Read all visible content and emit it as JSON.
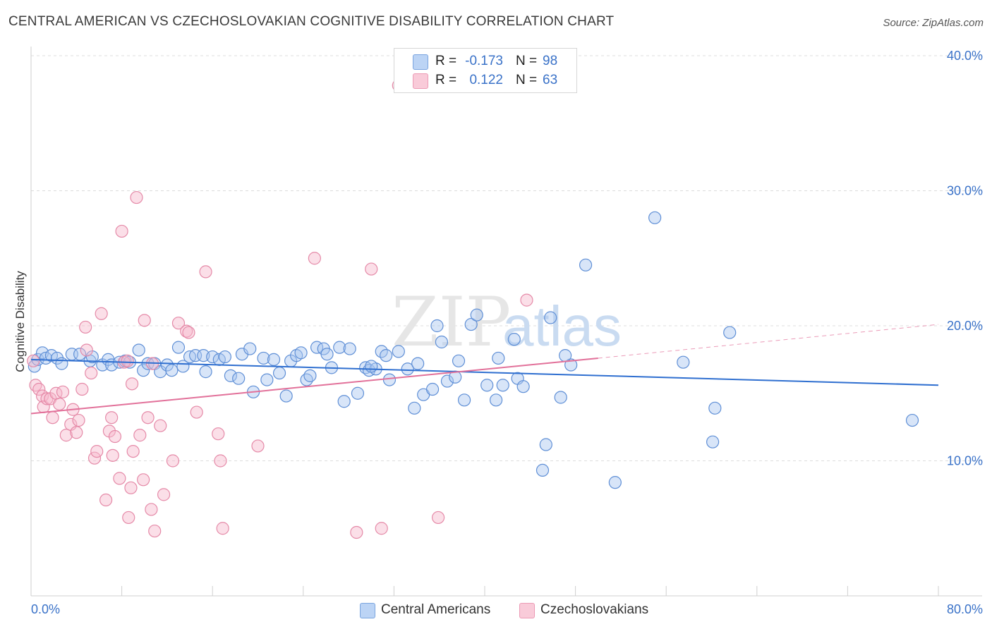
{
  "header": {
    "title": "CENTRAL AMERICAN VS CZECHOSLOVAKIAN COGNITIVE DISABILITY CORRELATION CHART",
    "source": "Source: ZipAtlas.com"
  },
  "watermark": {
    "zip": "ZIP",
    "atlas": "atlas"
  },
  "legend_top": {
    "rows": [
      {
        "r_label": "R =",
        "r_value": "-0.173",
        "n_label": "N =",
        "n_value": "98",
        "color": "#a8c6f0"
      },
      {
        "r_label": "R =",
        "r_value": "0.122",
        "n_label": "N =",
        "n_value": "63",
        "color": "#f6b8cb"
      }
    ]
  },
  "legend_bottom": {
    "items": [
      {
        "label": "Central Americans",
        "color": "#a8c6f0"
      },
      {
        "label": "Czechoslovakians",
        "color": "#f6b8cb"
      }
    ]
  },
  "chart_data": {
    "type": "scatter",
    "title": "CENTRAL AMERICAN VS CZECHOSLOVAKIAN COGNITIVE DISABILITY CORRELATION CHART",
    "xlabel": "",
    "ylabel": "Cognitive Disability",
    "xlim": [
      0,
      80
    ],
    "ylim": [
      0,
      40
    ],
    "x_tick_labels": [
      "0.0%",
      "80.0%"
    ],
    "y_ticks": [
      10,
      20,
      30,
      40
    ],
    "y_tick_labels": [
      "10.0%",
      "20.0%",
      "30.0%",
      "40.0%"
    ],
    "grid": "horizontal dashed",
    "legend_position": "top-center",
    "colors": {
      "blue_fill": "#a8c6f0",
      "blue_stroke": "#5f8fd6",
      "blue_line": "#2f6fd0",
      "pink_fill": "#f6b8cb",
      "pink_stroke": "#e58aa8",
      "pink_line": "#e2719a"
    },
    "series": [
      {
        "name": "Central Americans",
        "r": -0.173,
        "n": 98,
        "trend": {
          "x": [
            0,
            80
          ],
          "y": [
            17.5,
            15.6
          ]
        },
        "points": [
          [
            0.3,
            17.0
          ],
          [
            0.6,
            17.5
          ],
          [
            1.0,
            18.0
          ],
          [
            1.3,
            17.6
          ],
          [
            1.8,
            17.8
          ],
          [
            2.3,
            17.6
          ],
          [
            2.7,
            17.2
          ],
          [
            3.6,
            17.9
          ],
          [
            4.3,
            17.9
          ],
          [
            5.2,
            17.4
          ],
          [
            5.4,
            17.7
          ],
          [
            6.3,
            17.1
          ],
          [
            6.8,
            17.5
          ],
          [
            7.1,
            17.1
          ],
          [
            7.8,
            17.3
          ],
          [
            8.3,
            17.4
          ],
          [
            8.7,
            17.3
          ],
          [
            9.5,
            18.2
          ],
          [
            9.9,
            16.7
          ],
          [
            10.3,
            17.2
          ],
          [
            10.9,
            17.2
          ],
          [
            11.4,
            16.6
          ],
          [
            12.0,
            17.1
          ],
          [
            12.4,
            16.7
          ],
          [
            13.0,
            18.4
          ],
          [
            13.4,
            17.0
          ],
          [
            14.0,
            17.7
          ],
          [
            14.5,
            17.8
          ],
          [
            15.2,
            17.8
          ],
          [
            15.4,
            16.6
          ],
          [
            16.0,
            17.7
          ],
          [
            16.6,
            17.5
          ],
          [
            17.1,
            17.7
          ],
          [
            17.6,
            16.3
          ],
          [
            18.3,
            16.1
          ],
          [
            18.6,
            17.9
          ],
          [
            19.3,
            18.3
          ],
          [
            19.6,
            15.1
          ],
          [
            20.5,
            17.6
          ],
          [
            20.8,
            16.0
          ],
          [
            21.4,
            17.5
          ],
          [
            21.9,
            16.5
          ],
          [
            22.5,
            14.8
          ],
          [
            22.9,
            17.4
          ],
          [
            23.4,
            17.8
          ],
          [
            23.8,
            18.0
          ],
          [
            24.3,
            16.0
          ],
          [
            24.6,
            16.3
          ],
          [
            25.2,
            18.4
          ],
          [
            25.8,
            18.3
          ],
          [
            26.1,
            17.9
          ],
          [
            26.5,
            16.9
          ],
          [
            27.2,
            18.4
          ],
          [
            27.6,
            14.4
          ],
          [
            28.1,
            18.3
          ],
          [
            28.8,
            15.0
          ],
          [
            29.5,
            16.9
          ],
          [
            29.8,
            16.7
          ],
          [
            30.4,
            16.8
          ],
          [
            30.9,
            18.1
          ],
          [
            31.3,
            17.8
          ],
          [
            31.6,
            16.0
          ],
          [
            32.4,
            18.1
          ],
          [
            33.2,
            16.8
          ],
          [
            33.8,
            13.9
          ],
          [
            34.1,
            17.2
          ],
          [
            34.6,
            14.9
          ],
          [
            35.4,
            15.3
          ],
          [
            35.8,
            20.0
          ],
          [
            36.2,
            18.8
          ],
          [
            36.7,
            15.9
          ],
          [
            37.4,
            16.2
          ],
          [
            37.7,
            17.4
          ],
          [
            38.2,
            14.5
          ],
          [
            38.8,
            20.1
          ],
          [
            39.3,
            20.8
          ],
          [
            40.2,
            15.6
          ],
          [
            41.0,
            14.5
          ],
          [
            41.2,
            17.6
          ],
          [
            41.6,
            15.6
          ],
          [
            42.6,
            19.0
          ],
          [
            42.9,
            16.1
          ],
          [
            43.4,
            15.5
          ],
          [
            45.1,
            9.3
          ],
          [
            45.4,
            11.2
          ],
          [
            45.8,
            20.6
          ],
          [
            46.7,
            14.7
          ],
          [
            47.6,
            17.1
          ],
          [
            48.9,
            24.5
          ],
          [
            51.5,
            8.4
          ],
          [
            55.0,
            28.0
          ],
          [
            57.5,
            17.3
          ],
          [
            60.1,
            11.4
          ],
          [
            60.3,
            13.9
          ],
          [
            61.6,
            19.5
          ],
          [
            77.7,
            13.0
          ],
          [
            47.1,
            17.8
          ],
          [
            30.0,
            17.0
          ]
        ]
      },
      {
        "name": "Czechoslovakians",
        "r": 0.122,
        "n": 63,
        "trend": {
          "x": [
            0,
            50
          ],
          "y": [
            13.5,
            17.6
          ]
        },
        "trend_dashed_extension": {
          "x": [
            50,
            80
          ],
          "y": [
            17.6,
            20.1
          ]
        },
        "points": [
          [
            0.2,
            17.4
          ],
          [
            0.4,
            15.6
          ],
          [
            0.7,
            15.3
          ],
          [
            1.0,
            14.8
          ],
          [
            1.1,
            14.0
          ],
          [
            1.4,
            14.6
          ],
          [
            1.7,
            14.6
          ],
          [
            1.9,
            13.2
          ],
          [
            2.2,
            15.0
          ],
          [
            2.5,
            14.2
          ],
          [
            2.8,
            15.1
          ],
          [
            3.1,
            11.9
          ],
          [
            3.5,
            12.7
          ],
          [
            3.7,
            13.8
          ],
          [
            4.0,
            12.1
          ],
          [
            4.2,
            13.0
          ],
          [
            4.5,
            15.3
          ],
          [
            4.8,
            19.9
          ],
          [
            4.9,
            18.2
          ],
          [
            5.3,
            16.5
          ],
          [
            5.6,
            10.2
          ],
          [
            5.8,
            10.7
          ],
          [
            6.2,
            20.9
          ],
          [
            6.6,
            7.1
          ],
          [
            6.9,
            12.2
          ],
          [
            7.1,
            13.2
          ],
          [
            7.2,
            10.4
          ],
          [
            7.4,
            11.8
          ],
          [
            7.8,
            8.7
          ],
          [
            8.0,
            27.0
          ],
          [
            8.2,
            17.3
          ],
          [
            8.5,
            17.4
          ],
          [
            8.6,
            5.8
          ],
          [
            8.8,
            8.0
          ],
          [
            8.9,
            15.7
          ],
          [
            9.0,
            10.7
          ],
          [
            9.3,
            29.5
          ],
          [
            9.6,
            11.9
          ],
          [
            9.9,
            8.6
          ],
          [
            10.0,
            20.4
          ],
          [
            10.3,
            13.2
          ],
          [
            10.6,
            6.4
          ],
          [
            10.7,
            17.2
          ],
          [
            10.9,
            4.8
          ],
          [
            11.4,
            12.6
          ],
          [
            11.7,
            7.5
          ],
          [
            12.5,
            10.0
          ],
          [
            13.0,
            20.2
          ],
          [
            13.7,
            19.6
          ],
          [
            13.9,
            19.5
          ],
          [
            14.6,
            13.6
          ],
          [
            15.4,
            24.0
          ],
          [
            16.5,
            12.0
          ],
          [
            16.7,
            10.0
          ],
          [
            16.9,
            5.0
          ],
          [
            20.0,
            11.1
          ],
          [
            25.0,
            25.0
          ],
          [
            28.7,
            4.7
          ],
          [
            30.0,
            24.2
          ],
          [
            30.9,
            5.0
          ],
          [
            32.4,
            37.8
          ],
          [
            35.9,
            5.8
          ],
          [
            43.7,
            21.9
          ]
        ]
      }
    ]
  }
}
